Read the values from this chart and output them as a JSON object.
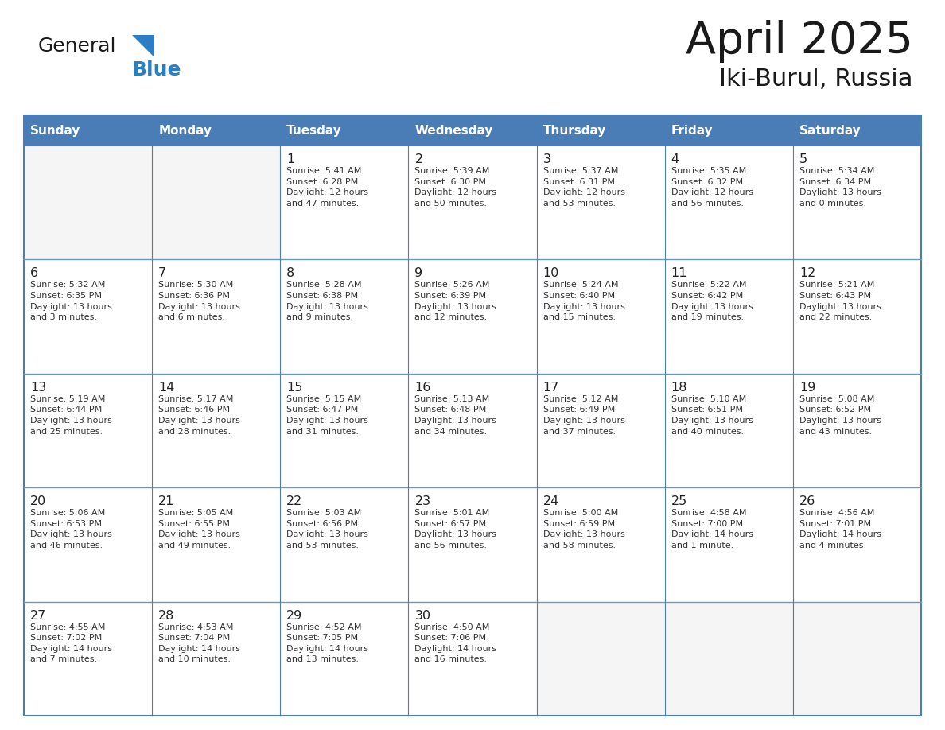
{
  "title": "April 2025",
  "subtitle": "Iki-Burul, Russia",
  "days_of_week": [
    "Sunday",
    "Monday",
    "Tuesday",
    "Wednesday",
    "Thursday",
    "Friday",
    "Saturday"
  ],
  "header_bg": "#4A7DB5",
  "header_text": "#FFFFFF",
  "cell_bg": "#FFFFFF",
  "cell_bg_empty": "#F5F5F5",
  "border_color": "#4A7DB5",
  "divider_color": "#6699CC",
  "text_color": "#333333",
  "day_num_color": "#222222",
  "logo_general_color": "#1a1a1a",
  "logo_blue_color": "#2B7EC4",
  "title_color": "#1a1a1a",
  "weeks": [
    [
      {
        "day": null,
        "data": null
      },
      {
        "day": null,
        "data": null
      },
      {
        "day": 1,
        "data": "Sunrise: 5:41 AM\nSunset: 6:28 PM\nDaylight: 12 hours\nand 47 minutes."
      },
      {
        "day": 2,
        "data": "Sunrise: 5:39 AM\nSunset: 6:30 PM\nDaylight: 12 hours\nand 50 minutes."
      },
      {
        "day": 3,
        "data": "Sunrise: 5:37 AM\nSunset: 6:31 PM\nDaylight: 12 hours\nand 53 minutes."
      },
      {
        "day": 4,
        "data": "Sunrise: 5:35 AM\nSunset: 6:32 PM\nDaylight: 12 hours\nand 56 minutes."
      },
      {
        "day": 5,
        "data": "Sunrise: 5:34 AM\nSunset: 6:34 PM\nDaylight: 13 hours\nand 0 minutes."
      }
    ],
    [
      {
        "day": 6,
        "data": "Sunrise: 5:32 AM\nSunset: 6:35 PM\nDaylight: 13 hours\nand 3 minutes."
      },
      {
        "day": 7,
        "data": "Sunrise: 5:30 AM\nSunset: 6:36 PM\nDaylight: 13 hours\nand 6 minutes."
      },
      {
        "day": 8,
        "data": "Sunrise: 5:28 AM\nSunset: 6:38 PM\nDaylight: 13 hours\nand 9 minutes."
      },
      {
        "day": 9,
        "data": "Sunrise: 5:26 AM\nSunset: 6:39 PM\nDaylight: 13 hours\nand 12 minutes."
      },
      {
        "day": 10,
        "data": "Sunrise: 5:24 AM\nSunset: 6:40 PM\nDaylight: 13 hours\nand 15 minutes."
      },
      {
        "day": 11,
        "data": "Sunrise: 5:22 AM\nSunset: 6:42 PM\nDaylight: 13 hours\nand 19 minutes."
      },
      {
        "day": 12,
        "data": "Sunrise: 5:21 AM\nSunset: 6:43 PM\nDaylight: 13 hours\nand 22 minutes."
      }
    ],
    [
      {
        "day": 13,
        "data": "Sunrise: 5:19 AM\nSunset: 6:44 PM\nDaylight: 13 hours\nand 25 minutes."
      },
      {
        "day": 14,
        "data": "Sunrise: 5:17 AM\nSunset: 6:46 PM\nDaylight: 13 hours\nand 28 minutes."
      },
      {
        "day": 15,
        "data": "Sunrise: 5:15 AM\nSunset: 6:47 PM\nDaylight: 13 hours\nand 31 minutes."
      },
      {
        "day": 16,
        "data": "Sunrise: 5:13 AM\nSunset: 6:48 PM\nDaylight: 13 hours\nand 34 minutes."
      },
      {
        "day": 17,
        "data": "Sunrise: 5:12 AM\nSunset: 6:49 PM\nDaylight: 13 hours\nand 37 minutes."
      },
      {
        "day": 18,
        "data": "Sunrise: 5:10 AM\nSunset: 6:51 PM\nDaylight: 13 hours\nand 40 minutes."
      },
      {
        "day": 19,
        "data": "Sunrise: 5:08 AM\nSunset: 6:52 PM\nDaylight: 13 hours\nand 43 minutes."
      }
    ],
    [
      {
        "day": 20,
        "data": "Sunrise: 5:06 AM\nSunset: 6:53 PM\nDaylight: 13 hours\nand 46 minutes."
      },
      {
        "day": 21,
        "data": "Sunrise: 5:05 AM\nSunset: 6:55 PM\nDaylight: 13 hours\nand 49 minutes."
      },
      {
        "day": 22,
        "data": "Sunrise: 5:03 AM\nSunset: 6:56 PM\nDaylight: 13 hours\nand 53 minutes."
      },
      {
        "day": 23,
        "data": "Sunrise: 5:01 AM\nSunset: 6:57 PM\nDaylight: 13 hours\nand 56 minutes."
      },
      {
        "day": 24,
        "data": "Sunrise: 5:00 AM\nSunset: 6:59 PM\nDaylight: 13 hours\nand 58 minutes."
      },
      {
        "day": 25,
        "data": "Sunrise: 4:58 AM\nSunset: 7:00 PM\nDaylight: 14 hours\nand 1 minute."
      },
      {
        "day": 26,
        "data": "Sunrise: 4:56 AM\nSunset: 7:01 PM\nDaylight: 14 hours\nand 4 minutes."
      }
    ],
    [
      {
        "day": 27,
        "data": "Sunrise: 4:55 AM\nSunset: 7:02 PM\nDaylight: 14 hours\nand 7 minutes."
      },
      {
        "day": 28,
        "data": "Sunrise: 4:53 AM\nSunset: 7:04 PM\nDaylight: 14 hours\nand 10 minutes."
      },
      {
        "day": 29,
        "data": "Sunrise: 4:52 AM\nSunset: 7:05 PM\nDaylight: 14 hours\nand 13 minutes."
      },
      {
        "day": 30,
        "data": "Sunrise: 4:50 AM\nSunset: 7:06 PM\nDaylight: 14 hours\nand 16 minutes."
      },
      {
        "day": null,
        "data": null
      },
      {
        "day": null,
        "data": null
      },
      {
        "day": null,
        "data": null
      }
    ]
  ]
}
